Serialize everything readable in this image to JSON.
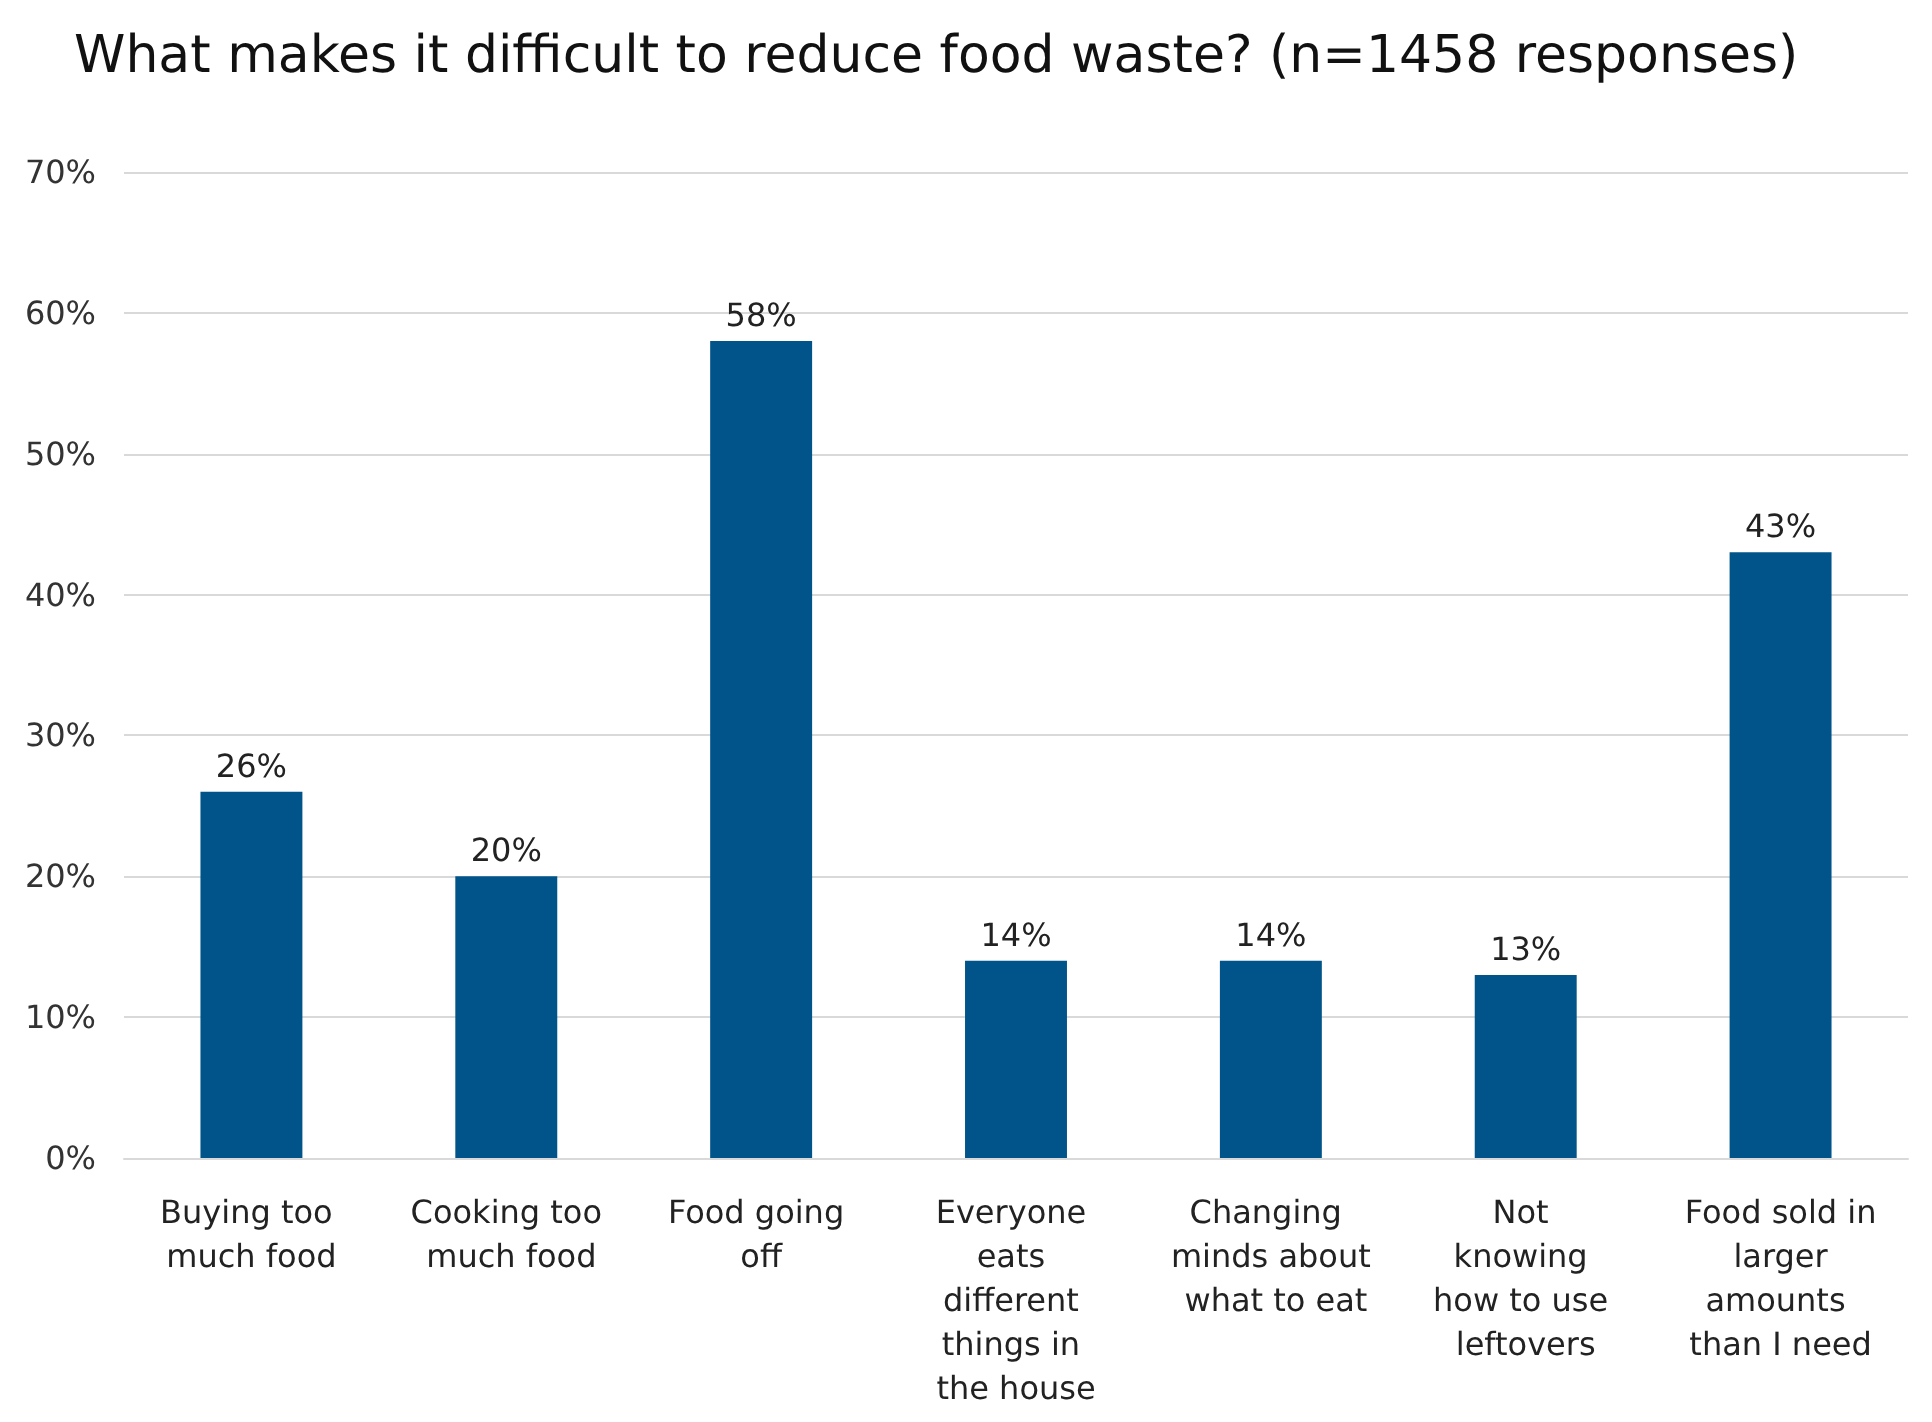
{
  "chart_data": {
    "type": "bar",
    "title": "What makes it difficult to reduce food waste? (n=1458 responses)",
    "categories": [
      "Buying too much food",
      "Cooking too much food",
      "Food going off",
      "Everyone eats different things in the house",
      "Changing minds about what to eat",
      "Not knowing how to use leftovers",
      "Food sold in larger amounts than I need"
    ],
    "values": [
      26,
      20,
      58,
      14,
      14,
      13,
      43
    ],
    "value_labels": [
      "26%",
      "20%",
      "58%",
      "14%",
      "14%",
      "13%",
      "43%"
    ],
    "color": "#00548a",
    "ylim": [
      0,
      70
    ],
    "yticks": [
      {
        "value": 0,
        "label": "0%"
      },
      {
        "value": 10,
        "label": "10%"
      },
      {
        "value": 20,
        "label": "20%"
      },
      {
        "value": 30,
        "label": "30%"
      },
      {
        "value": 40,
        "label": "40%"
      },
      {
        "value": 50,
        "label": "50%"
      },
      {
        "value": 60,
        "label": "60%"
      },
      {
        "value": 70,
        "label": "70%"
      }
    ],
    "grid": "y"
  }
}
